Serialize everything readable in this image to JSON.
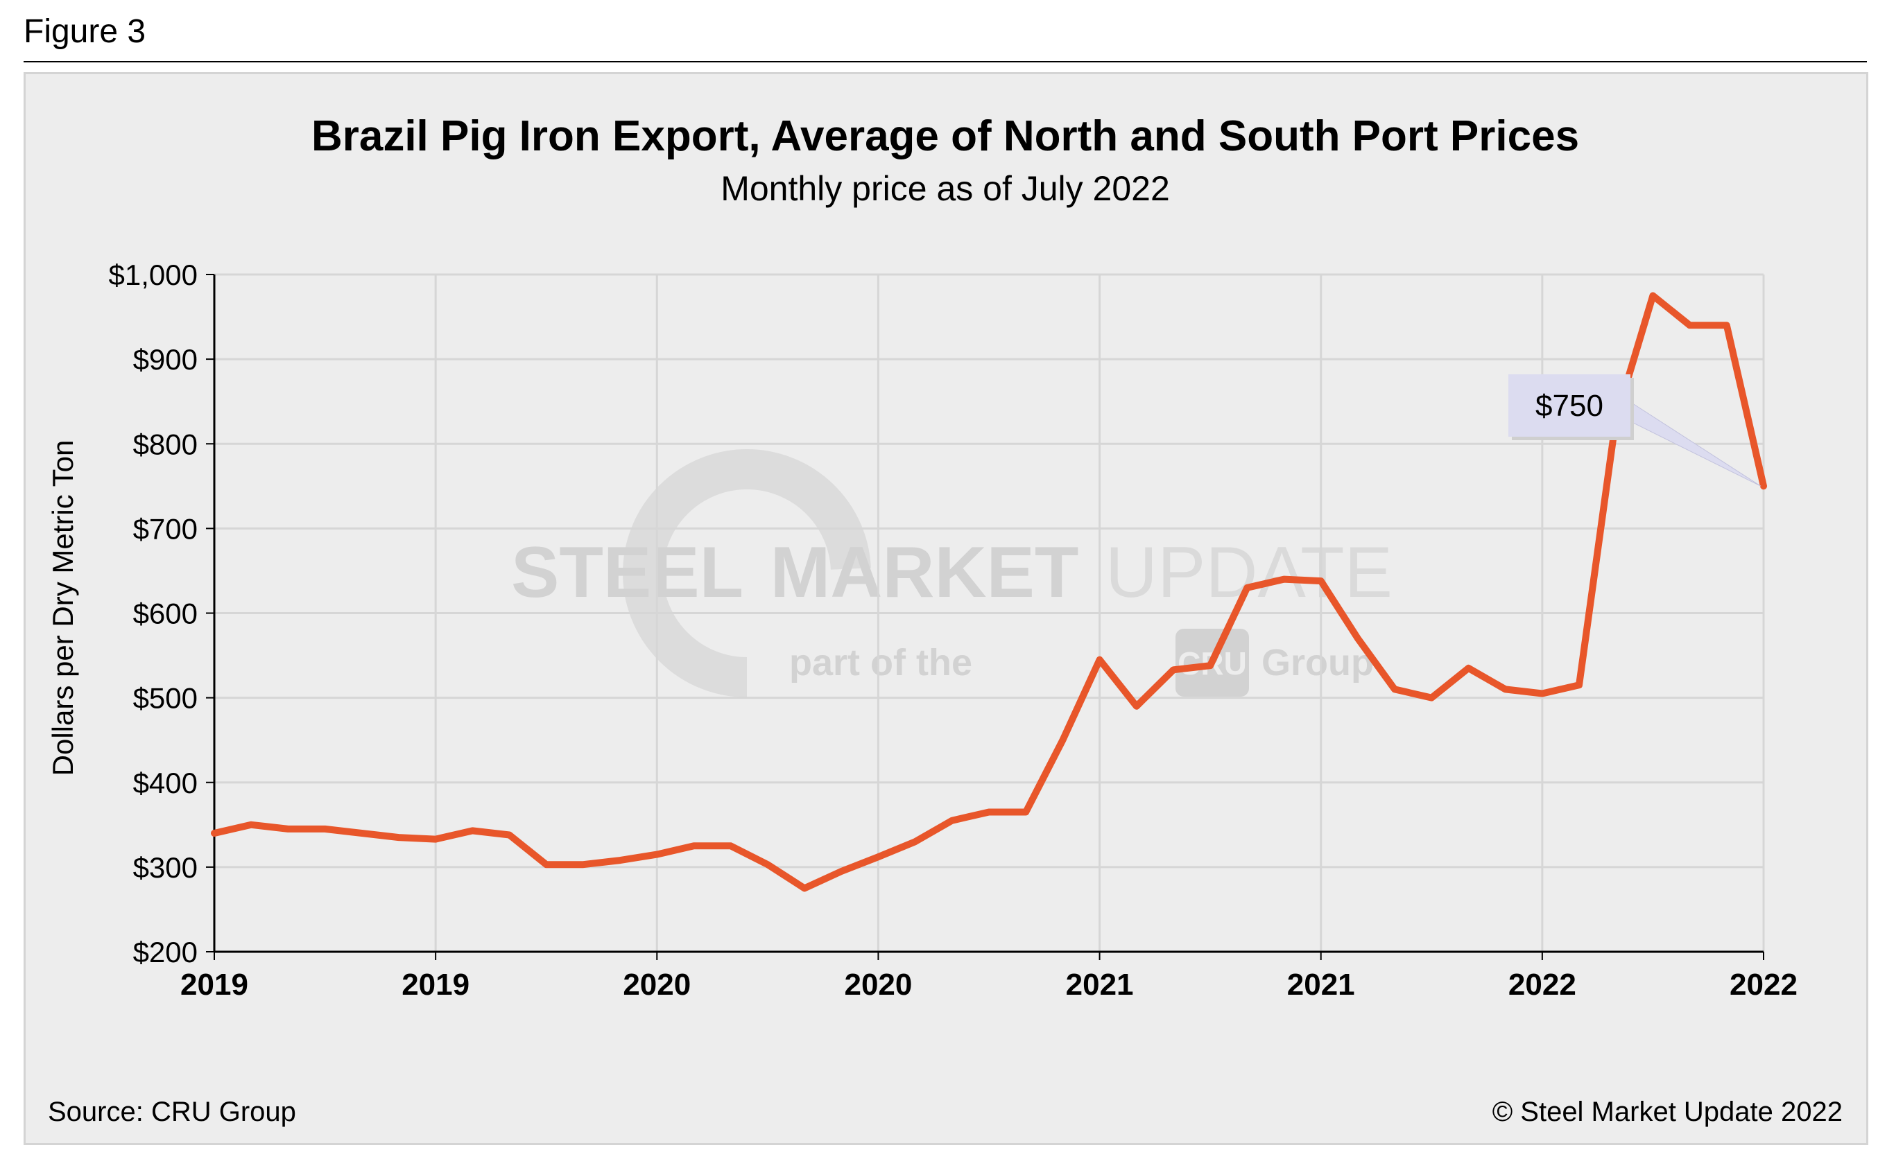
{
  "figure_label": "Figure 3",
  "source": "Source: CRU Group",
  "copyright": "© Steel Market Update 2022",
  "watermark": {
    "word1": "STEEL",
    "word2": "MARKET",
    "word3": "UPDATE",
    "tagline_prefix": "part of the",
    "tagline_logo": "CRU",
    "tagline_suffix": "Group"
  },
  "colors": {
    "line": "#e8562a",
    "grid": "#d6d6d6",
    "callout_fill": "#dcdcf0"
  },
  "chart_data": {
    "type": "line",
    "title": "Brazil Pig Iron Export, Average of North and South Port Prices",
    "subtitle": "Monthly price as of July 2022",
    "ylabel": "Dollars per Dry Metric Ton",
    "xlabel": "",
    "ylim": [
      200,
      1000
    ],
    "y_ticks": [
      {
        "value": 200,
        "label": "$200"
      },
      {
        "value": 300,
        "label": "$300"
      },
      {
        "value": 400,
        "label": "$400"
      },
      {
        "value": 500,
        "label": "$500"
      },
      {
        "value": 600,
        "label": "$600"
      },
      {
        "value": 700,
        "label": "$700"
      },
      {
        "value": 800,
        "label": "$800"
      },
      {
        "value": 900,
        "label": "$900"
      },
      {
        "value": 1000,
        "label": "$1,000"
      }
    ],
    "x_ticks": [
      "2019",
      "2019",
      "2020",
      "2020",
      "2021",
      "2021",
      "2022",
      "2022"
    ],
    "grid": true,
    "series": [
      {
        "values": [
          340,
          350,
          345,
          345,
          340,
          335,
          333,
          343,
          338,
          303,
          303,
          308,
          315,
          325,
          325,
          303,
          275,
          295,
          312,
          330,
          355,
          365,
          365,
          450,
          545,
          490,
          533,
          538,
          630,
          640,
          638,
          570,
          510,
          500,
          535,
          510,
          505,
          515,
          830,
          975,
          940,
          940,
          750
        ]
      }
    ],
    "annotation": {
      "label": "$750",
      "value": 750
    }
  }
}
